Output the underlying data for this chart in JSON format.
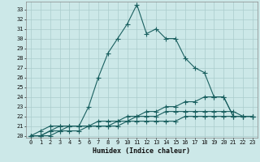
{
  "title": "",
  "xlabel": "Humidex (Indice chaleur)",
  "ylabel": "",
  "background_color": "#cce8e8",
  "grid_color": "#aacccc",
  "line_color": "#1a6060",
  "xlim": [
    -0.5,
    23.5
  ],
  "ylim": [
    19.8,
    33.8
  ],
  "xticks": [
    0,
    1,
    2,
    3,
    4,
    5,
    6,
    7,
    8,
    9,
    10,
    11,
    12,
    13,
    14,
    15,
    16,
    17,
    18,
    19,
    20,
    21,
    22,
    23
  ],
  "yticks": [
    20,
    21,
    22,
    23,
    24,
    25,
    26,
    27,
    28,
    29,
    30,
    31,
    32,
    33
  ],
  "line1_x": [
    0,
    1,
    2,
    3,
    4,
    5,
    6,
    7,
    8,
    9,
    10,
    11,
    12,
    13,
    14,
    15,
    16,
    17,
    18,
    19,
    20,
    21,
    22,
    23
  ],
  "line1_y": [
    20,
    20.5,
    21,
    21,
    21,
    21,
    23,
    26,
    28.5,
    30,
    31.5,
    33.5,
    30.5,
    31,
    30,
    30,
    28,
    27,
    26.5,
    24,
    24,
    22,
    22,
    22
  ],
  "line2_x": [
    0,
    1,
    2,
    3,
    4,
    5,
    6,
    7,
    8,
    9,
    10,
    11,
    12,
    13,
    14,
    15,
    16,
    17,
    18,
    19,
    20,
    21,
    22,
    23
  ],
  "line2_y": [
    20,
    20,
    20.5,
    21,
    21,
    21,
    21,
    21.5,
    21.5,
    21.5,
    22,
    22,
    22.5,
    22.5,
    23,
    23,
    23.5,
    23.5,
    24,
    24,
    24,
    22,
    22,
    22
  ],
  "line3_x": [
    0,
    1,
    2,
    3,
    4,
    5,
    6,
    7,
    8,
    9,
    10,
    11,
    12,
    13,
    14,
    15,
    16,
    17,
    18,
    19,
    20,
    21,
    22,
    23
  ],
  "line3_y": [
    20,
    20,
    20.5,
    20.5,
    21,
    21,
    21,
    21,
    21,
    21.5,
    21.5,
    22,
    22,
    22,
    22.5,
    22.5,
    22.5,
    22.5,
    22.5,
    22.5,
    22.5,
    22.5,
    22,
    22
  ],
  "line4_x": [
    0,
    1,
    2,
    3,
    4,
    5,
    6,
    7,
    8,
    9,
    10,
    11,
    12,
    13,
    14,
    15,
    16,
    17,
    18,
    19,
    20,
    21,
    22,
    23
  ],
  "line4_y": [
    20,
    20,
    20,
    20.5,
    20.5,
    20.5,
    21,
    21,
    21,
    21,
    21.5,
    21.5,
    21.5,
    21.5,
    21.5,
    21.5,
    22,
    22,
    22,
    22,
    22,
    22,
    22,
    22
  ],
  "tick_fontsize": 5,
  "xlabel_fontsize": 6
}
